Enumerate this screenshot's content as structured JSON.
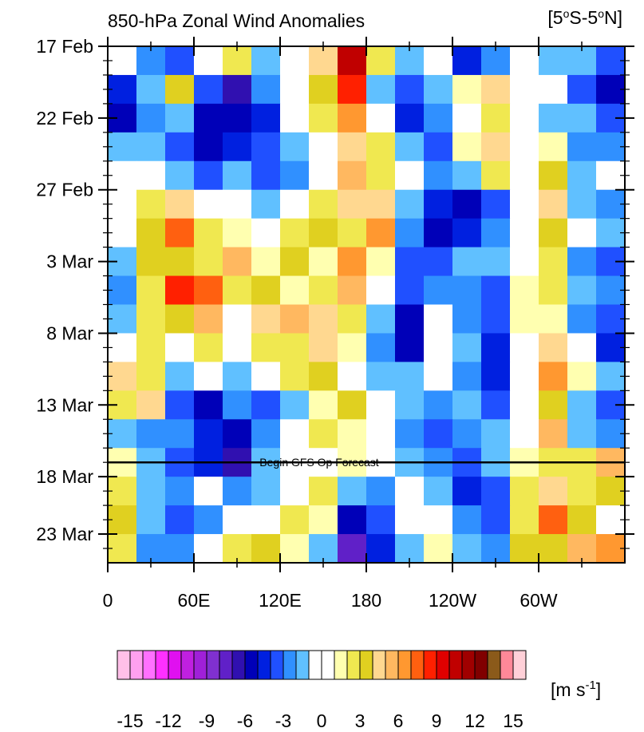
{
  "chart_data": {
    "type": "heatmap",
    "title": "850-hPa Zonal Wind Anomalies",
    "region": [
      "[5",
      "o",
      "S-5",
      "o",
      "N]"
    ],
    "annotation": "Begin GFS Op Forecast",
    "annotation_y": 29,
    "x": [
      10,
      30,
      50,
      70,
      90,
      110,
      130,
      150,
      170,
      190,
      210,
      230,
      250,
      270,
      290,
      310,
      330,
      350
    ],
    "y": [
      1,
      3,
      5,
      7,
      9,
      11,
      13,
      15,
      17,
      19,
      21,
      23,
      25,
      27,
      29,
      31,
      33,
      35
    ],
    "xlim": [
      0,
      360
    ],
    "ylim": [
      0,
      36
    ],
    "xticks": [
      0,
      {
        "value": 60,
        "label": "60E"
      },
      {
        "value": 120,
        "label": "120E"
      },
      180,
      {
        "value": 240,
        "label": "120W"
      },
      {
        "value": 300,
        "label": "60W"
      }
    ],
    "xminor_ticks": [
      30,
      90,
      150,
      210,
      270,
      330
    ],
    "yticks": [
      {
        "value": 0,
        "label": "17 Feb"
      },
      {
        "value": 5,
        "label": "22 Feb"
      },
      {
        "value": 10,
        "label": "27 Feb"
      },
      {
        "value": 15,
        "label": "3 Mar"
      },
      {
        "value": 20,
        "label": "8 Mar"
      },
      {
        "value": 25,
        "label": "13 Mar"
      },
      {
        "value": 30,
        "label": "18 Mar"
      },
      {
        "value": 34,
        "label": "23 Mar"
      }
    ],
    "yminor_ticks": [
      1,
      2,
      3,
      4,
      6,
      7,
      8,
      9,
      11,
      12,
      13,
      14,
      16,
      17,
      18,
      19,
      21,
      22,
      23,
      24,
      26,
      27,
      28,
      29,
      31,
      32,
      33,
      35
    ],
    "z": [
      [
        0,
        -3,
        -4,
        0,
        2,
        -2,
        0,
        4,
        10,
        2,
        -2,
        -1,
        -5,
        -3,
        0,
        -2,
        -2,
        -4
      ],
      [
        -5,
        -2,
        3,
        -4,
        -7,
        -3,
        -1,
        3,
        8,
        -2,
        -4,
        -2,
        1,
        4,
        -1,
        0,
        -4,
        -6
      ],
      [
        -6,
        -3,
        -2,
        -6,
        -6,
        -5,
        -1,
        2,
        6,
        0,
        -5,
        -3,
        0,
        2,
        0,
        -2,
        -2,
        -4
      ],
      [
        -2,
        -2,
        -4,
        -6,
        -5,
        -4,
        -2,
        0,
        4,
        2,
        -2,
        -4,
        1,
        4,
        -1,
        1,
        -3,
        -3
      ],
      [
        -1,
        0,
        -2,
        -4,
        -2,
        -4,
        -3,
        -1,
        5,
        2,
        0,
        -3,
        -2,
        2,
        0,
        3,
        -2,
        -1
      ],
      [
        0,
        2,
        4,
        0,
        -1,
        -2,
        0,
        2,
        4,
        4,
        -2,
        -5,
        -6,
        -4,
        0,
        4,
        -2,
        -3
      ],
      [
        0,
        3,
        7,
        2,
        1,
        0,
        2,
        3,
        2,
        6,
        -3,
        -6,
        -5,
        -3,
        0,
        3,
        -1,
        -2
      ],
      [
        -2,
        3,
        3,
        2,
        5,
        1,
        3,
        1,
        6,
        1,
        -4,
        -4,
        -2,
        -2,
        0,
        2,
        -3,
        -4
      ],
      [
        -3,
        2,
        8,
        7,
        2,
        3,
        1,
        2,
        5,
        -1,
        -4,
        -3,
        -3,
        -4,
        1,
        2,
        -2,
        -3
      ],
      [
        -2,
        2,
        3,
        5,
        0,
        4,
        5,
        4,
        2,
        -2,
        -6,
        0,
        -3,
        -4,
        1,
        1,
        -3,
        -4
      ],
      [
        -1,
        2,
        0,
        2,
        0,
        2,
        2,
        4,
        1,
        -3,
        -6,
        -1,
        -2,
        -5,
        0,
        4,
        0,
        -5
      ],
      [
        4,
        2,
        -2,
        0,
        -2,
        0,
        2,
        3,
        0,
        -2,
        -2,
        -1,
        -3,
        -5,
        0,
        6,
        1,
        -2
      ],
      [
        2,
        4,
        -4,
        -6,
        -3,
        -4,
        -2,
        1,
        3,
        0,
        -2,
        -3,
        -2,
        -4,
        -1,
        3,
        -2,
        -4
      ],
      [
        -2,
        -3,
        -3,
        -5,
        -6,
        -3,
        -1,
        2,
        1,
        -1,
        -3,
        -4,
        -3,
        -2,
        0,
        5,
        -2,
        -3
      ],
      [
        1,
        -2,
        -4,
        -5,
        -7,
        -2,
        0,
        0,
        1,
        0,
        -2,
        -3,
        -4,
        -2,
        1,
        2,
        2,
        5
      ],
      [
        2,
        -2,
        -3,
        -1,
        -3,
        -2,
        0,
        2,
        -2,
        -3,
        0,
        -2,
        -5,
        -4,
        2,
        4,
        2,
        3
      ],
      [
        3,
        -2,
        -4,
        -3,
        -1,
        0,
        2,
        1,
        -6,
        -4,
        -1,
        0,
        -3,
        -4,
        2,
        7,
        3,
        0
      ],
      [
        2,
        -3,
        -3,
        0,
        2,
        3,
        1,
        -2,
        -8,
        -5,
        -2,
        1,
        -2,
        -3,
        3,
        3,
        5,
        6
      ]
    ],
    "zlim": [
      -16,
      16
    ],
    "colors": [
      "#ffc0e8",
      "#ffa0f0",
      "#ff70ff",
      "#ff30ff",
      "#e010f0",
      "#c020e0",
      "#a020d8",
      "#8030d0",
      "#6020c8",
      "#3010b0",
      "#0000b8",
      "#0020e0",
      "#2050ff",
      "#3090ff",
      "#60c0ff",
      "#ffffff",
      "#ffffff",
      "#ffffb0",
      "#f0e850",
      "#e0d020",
      "#ffd890",
      "#ffb860",
      "#ff9830",
      "#ff6010",
      "#ff2000",
      "#e00000",
      "#c00000",
      "#a00000",
      "#800000",
      "#8b5a1a",
      "#ff8898",
      "#ffd0d8"
    ],
    "colorbar_ticks": [
      -15,
      -12,
      -9,
      -6,
      -3,
      0,
      3,
      6,
      9,
      12,
      15
    ],
    "units": [
      "[m s",
      "-1",
      "]"
    ]
  }
}
